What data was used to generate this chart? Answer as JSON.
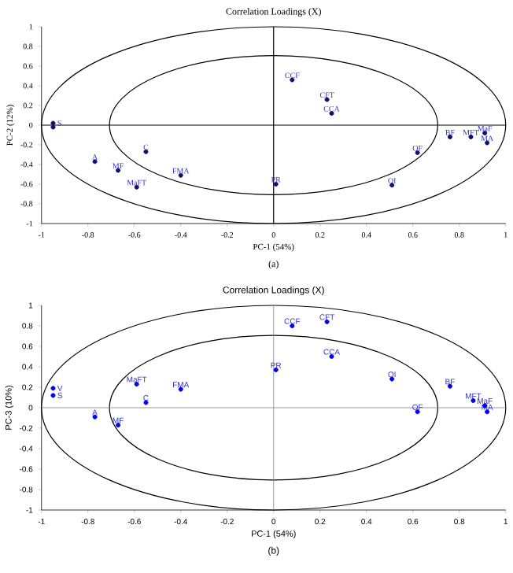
{
  "chart_data": [
    {
      "type": "scatter",
      "title": "Correlation Loadings (X)",
      "xlabel": "PC-1 (54%)",
      "ylabel": "PC-2 (12%)",
      "marker": "circle",
      "color": "#10106a",
      "x": [
        -0.95,
        -0.95,
        -0.77,
        -0.67,
        -0.59,
        -0.55,
        -0.4,
        0.01,
        0.08,
        0.23,
        0.25,
        0.51,
        0.62,
        0.76,
        0.85,
        0.91,
        0.92
      ],
      "values": [
        0.02,
        -0.02,
        -0.37,
        -0.46,
        -0.63,
        -0.27,
        -0.51,
        -0.6,
        0.46,
        0.26,
        0.12,
        -0.61,
        -0.28,
        -0.12,
        -0.12,
        -0.08,
        -0.18
      ],
      "xlim": [
        -1,
        1
      ],
      "ylim": [
        -1,
        1
      ],
      "xticks": [
        -1,
        -0.8,
        -0.6,
        -0.4,
        -0.2,
        0,
        0.2,
        0.4,
        0.6,
        0.8,
        1
      ],
      "yticks": [
        -1,
        -0.8,
        -0.6,
        -0.4,
        -0.2,
        0,
        0.2,
        0.4,
        0.6,
        0.8,
        1
      ],
      "annotations": [
        "(a)",
        {
          "text": "S",
          "x": -0.95,
          "y": 0.02
        },
        {
          "text": "A",
          "x": -0.77,
          "y": -0.37
        },
        {
          "text": "MF",
          "x": -0.67,
          "y": -0.46
        },
        {
          "text": "MaFT",
          "x": -0.59,
          "y": -0.63
        },
        {
          "text": "C",
          "x": -0.55,
          "y": -0.27
        },
        {
          "text": "FMA",
          "x": -0.4,
          "y": -0.51
        },
        {
          "text": "PR",
          "x": 0.01,
          "y": -0.6
        },
        {
          "text": "CCF",
          "x": 0.08,
          "y": 0.46
        },
        {
          "text": "CFT",
          "x": 0.23,
          "y": 0.26
        },
        {
          "text": "CCA",
          "x": 0.25,
          "y": 0.12
        },
        {
          "text": "OI",
          "x": 0.51,
          "y": -0.61
        },
        {
          "text": "OF",
          "x": 0.62,
          "y": -0.28
        },
        {
          "text": "BF",
          "x": 0.76,
          "y": -0.12
        },
        {
          "text": "MFT",
          "x": 0.85,
          "y": -0.12
        },
        {
          "text": "MaF",
          "x": 0.91,
          "y": -0.08
        },
        {
          "text": "MA",
          "x": 0.92,
          "y": -0.18
        }
      ]
    },
    {
      "type": "scatter",
      "title": "Correlation Loadings (X)",
      "xlabel": "PC-1 (54%)",
      "ylabel": "PC-3 (10%)",
      "marker": "circle",
      "color": "#0000ee",
      "x": [
        -0.95,
        -0.95,
        -0.77,
        -0.67,
        -0.59,
        -0.55,
        -0.4,
        0.01,
        0.08,
        0.23,
        0.25,
        0.51,
        0.62,
        0.76,
        0.86,
        0.91,
        0.92
      ],
      "values": [
        0.19,
        0.12,
        -0.09,
        -0.17,
        0.23,
        0.05,
        0.18,
        0.37,
        0.8,
        0.84,
        0.5,
        0.28,
        -0.04,
        0.21,
        0.07,
        0.02,
        -0.04
      ],
      "xlim": [
        -1,
        1
      ],
      "ylim": [
        -1,
        1
      ],
      "xticks": [
        -1,
        -0.8,
        -0.6,
        -0.4,
        -0.2,
        0,
        0.2,
        0.4,
        0.6,
        0.8,
        1
      ],
      "yticks": [
        -1,
        -0.8,
        -0.6,
        -0.4,
        -0.2,
        0,
        0.2,
        0.4,
        0.6,
        0.8,
        1
      ],
      "annotations": [
        "(b)",
        {
          "text": "V",
          "x": -0.95,
          "y": 0.19
        },
        {
          "text": "S",
          "x": -0.95,
          "y": 0.12
        },
        {
          "text": "A",
          "x": -0.77,
          "y": -0.09
        },
        {
          "text": "MF",
          "x": -0.67,
          "y": -0.17
        },
        {
          "text": "MaFT",
          "x": -0.59,
          "y": 0.23
        },
        {
          "text": "C",
          "x": -0.55,
          "y": 0.05
        },
        {
          "text": "FMA",
          "x": -0.4,
          "y": 0.18
        },
        {
          "text": "PR",
          "x": 0.01,
          "y": 0.37
        },
        {
          "text": "CCF",
          "x": 0.08,
          "y": 0.8
        },
        {
          "text": "CFT",
          "x": 0.23,
          "y": 0.84
        },
        {
          "text": "CCA",
          "x": 0.25,
          "y": 0.5
        },
        {
          "text": "OI",
          "x": 0.51,
          "y": 0.28
        },
        {
          "text": "OF",
          "x": 0.62,
          "y": -0.04
        },
        {
          "text": "BF",
          "x": 0.76,
          "y": 0.21
        },
        {
          "text": "MFT",
          "x": 0.86,
          "y": 0.07
        },
        {
          "text": "MaF",
          "x": 0.91,
          "y": 0.02
        },
        {
          "text": "MA",
          "x": 0.92,
          "y": -0.04
        }
      ]
    }
  ]
}
